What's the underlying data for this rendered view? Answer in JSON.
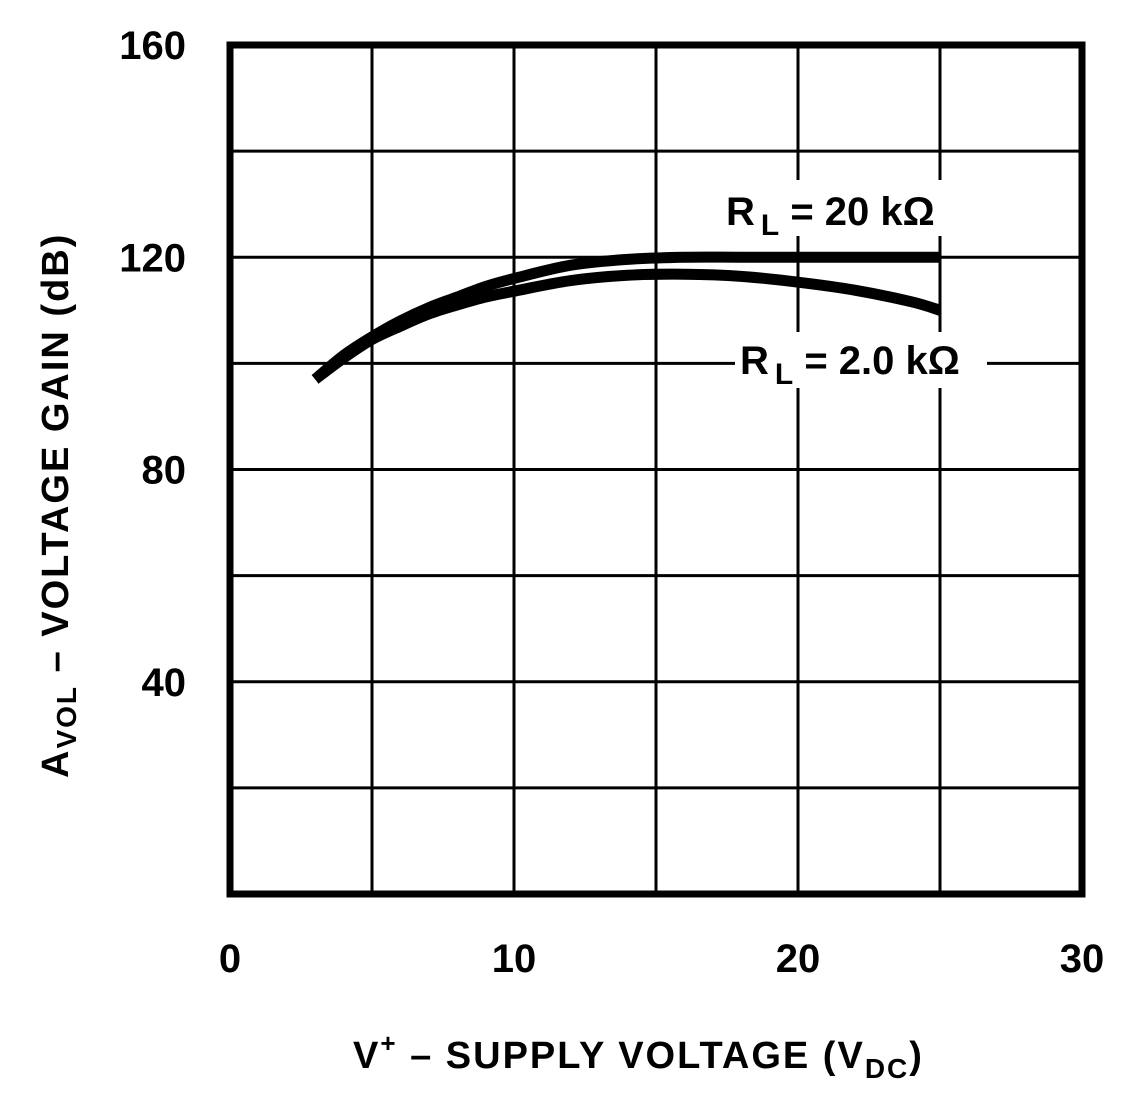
{
  "chart_data": {
    "type": "line",
    "xlabel": {
      "main": "V",
      "superscript": "+",
      "middle": " – SUPPLY VOLTAGE (V",
      "subscript": "DC",
      "end": ")"
    },
    "ylabel": {
      "main": "A",
      "subscript": "VOL",
      "rest": " – VOLTAGE GAIN (dB)"
    },
    "xlim": [
      0,
      30
    ],
    "ylim": [
      0,
      160
    ],
    "x_ticks": [
      0,
      10,
      20,
      30
    ],
    "y_ticks": [
      40,
      80,
      120,
      160
    ],
    "x_grid_step": 5,
    "y_grid_step": 20,
    "grid": true,
    "series": [
      {
        "label": {
          "main": "R",
          "subscript": "L",
          "rest": " = 20 kΩ"
        },
        "x": [
          3,
          4,
          5,
          6,
          7,
          8,
          9,
          10,
          12,
          14,
          16,
          18,
          20,
          22,
          24,
          25
        ],
        "y": [
          97,
          101.5,
          105,
          108,
          110.5,
          112.5,
          114.5,
          116,
          118.5,
          119.6,
          120,
          120,
          120,
          120,
          120,
          120
        ]
      },
      {
        "label": {
          "main": "R",
          "subscript": "L",
          "rest": " = 2.0 kΩ"
        },
        "x": [
          3,
          4,
          5,
          6,
          7,
          8,
          9,
          10,
          12,
          14,
          16,
          18,
          20,
          22,
          24,
          25
        ],
        "y": [
          97,
          101,
          104.5,
          107,
          109.3,
          111,
          112.5,
          113.6,
          115.6,
          116.6,
          116.8,
          116.4,
          115.3,
          113.8,
          111.6,
          110
        ]
      }
    ]
  }
}
